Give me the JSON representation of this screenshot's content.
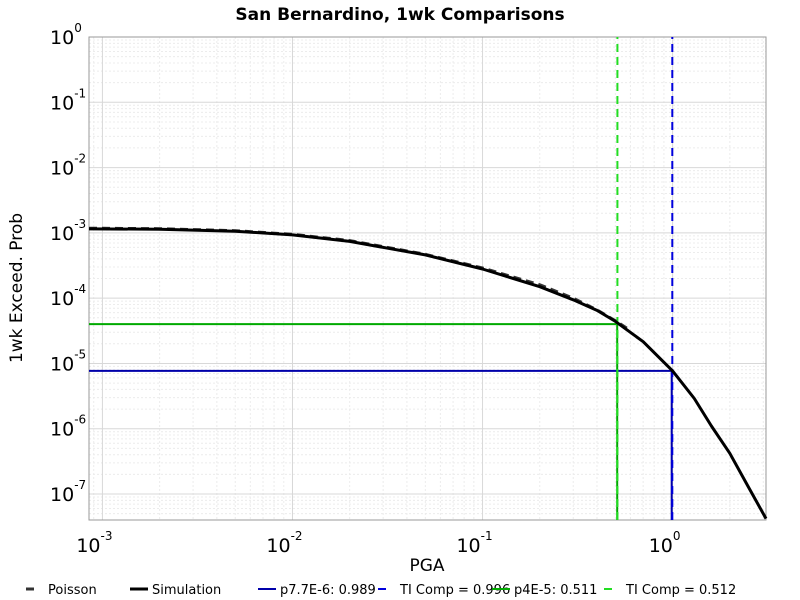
{
  "chart_data": {
    "type": "line",
    "title": "San Bernardino, 1wk Comparisons",
    "xlabel": "PGA",
    "ylabel": "1wk Exceed. Prob",
    "x_scale": "log",
    "y_scale": "log",
    "xlim": [
      0.00085,
      3.1
    ],
    "ylim": [
      4e-08,
      1
    ],
    "grid": true,
    "legend_placement": "bottom",
    "x_ticks": [
      {
        "base": "10",
        "exp": "-3",
        "value": 0.001
      },
      {
        "base": "10",
        "exp": "-2",
        "value": 0.01
      },
      {
        "base": "10",
        "exp": "-1",
        "value": 0.1
      },
      {
        "base": "10",
        "exp": "0",
        "value": 1
      }
    ],
    "y_ticks": [
      {
        "base": "10",
        "exp": "0",
        "value": 1
      },
      {
        "base": "10",
        "exp": "-1",
        "value": 0.1
      },
      {
        "base": "10",
        "exp": "-2",
        "value": 0.01
      },
      {
        "base": "10",
        "exp": "-3",
        "value": 0.001
      },
      {
        "base": "10",
        "exp": "-4",
        "value": 0.0001
      },
      {
        "base": "10",
        "exp": "-5",
        "value": 1e-05
      },
      {
        "base": "10",
        "exp": "-6",
        "value": 1e-06
      },
      {
        "base": "10",
        "exp": "-7",
        "value": 1e-07
      }
    ],
    "series": [
      {
        "name": "Poisson",
        "color": "#333333",
        "style": "dashed",
        "x": [
          0.00085,
          0.002,
          0.005,
          0.01,
          0.02,
          0.05,
          0.1,
          0.2,
          0.3,
          0.4,
          0.5,
          0.6
        ],
        "y": [
          0.00118,
          0.00116,
          0.00108,
          0.00095,
          0.00076,
          0.00047,
          0.00029,
          0.00016,
          0.0001,
          6.6e-05,
          4.5e-05,
          3.2e-05
        ]
      },
      {
        "name": "Simulation",
        "color": "#000000",
        "style": "solid",
        "x": [
          0.00085,
          0.002,
          0.005,
          0.01,
          0.02,
          0.05,
          0.1,
          0.2,
          0.3,
          0.4,
          0.5,
          0.7,
          1.0,
          1.3,
          1.6,
          2.0,
          2.5,
          3.1
        ],
        "y": [
          0.00115,
          0.00114,
          0.00106,
          0.00093,
          0.00074,
          0.00046,
          0.00028,
          0.00015,
          9.45e-05,
          6.5e-05,
          4.4e-05,
          2.15e-05,
          7.7e-06,
          2.9e-06,
          1.1e-06,
          4.2e-07,
          1.3e-07,
          4.2e-08
        ]
      },
      {
        "name": "p7.7E-6: 0.989",
        "color": "#0000aa",
        "style": "solid",
        "x": [
          0.00085,
          0.989,
          0.989
        ],
        "y": [
          7.7e-06,
          7.7e-06,
          4e-08
        ]
      },
      {
        "name": "TI Comp = 0.996",
        "color": "#0000dd",
        "style": "dashed",
        "x": [
          0.996,
          0.996
        ],
        "y": [
          4e-08,
          1
        ]
      },
      {
        "name": "p4E-5: 0.511",
        "color": "#00aa00",
        "style": "solid",
        "x": [
          0.00085,
          0.511,
          0.511
        ],
        "y": [
          4e-05,
          4e-05,
          4e-08
        ]
      },
      {
        "name": "TI Comp = 0.512",
        "color": "#22dd22",
        "style": "dashed",
        "x": [
          0.512,
          0.512
        ],
        "y": [
          4e-08,
          1
        ]
      }
    ]
  }
}
